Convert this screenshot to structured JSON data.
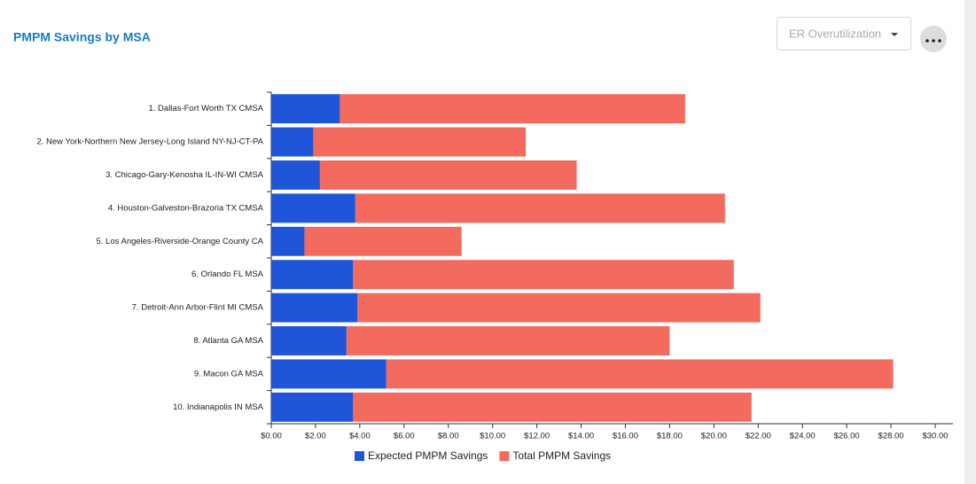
{
  "chart_data": {
    "type": "stacked-bar-horizontal",
    "title": "PMPM Savings by MSA",
    "filter": "ER Overutilization",
    "categories": [
      "1. Dallas-Fort Worth TX CMSA",
      "2. New York-Northern New Jersey-Long Island NY-NJ-CT-PA",
      "3. Chicago-Gary-Kenosha IL-IN-WI CMSA",
      "4. Houston-Galveston-Brazoria TX CMSA",
      "5. Los Angeles-Riverside-Orange County CA",
      "6. Orlando FL MSA",
      "7. Detroit-Ann Arbor-Flint MI CMSA",
      "8. Atlanta GA MSA",
      "9. Macon GA MSA",
      "10. Indianapolis IN MSA"
    ],
    "series": [
      {
        "name": "Expected PMPM Savings",
        "color": "#1f56d9",
        "values": [
          3.1,
          1.9,
          2.2,
          3.8,
          1.5,
          3.7,
          3.9,
          3.4,
          5.2,
          3.7
        ]
      },
      {
        "name": "Total PMPM Savings",
        "color": "#f26b5e",
        "values": [
          15.6,
          9.6,
          11.6,
          16.7,
          7.1,
          17.2,
          18.2,
          14.6,
          22.9,
          18.0
        ]
      }
    ],
    "xlim": [
      0,
      30
    ],
    "xticks": [
      {
        "value": 0,
        "label": "$0.00"
      },
      {
        "value": 2,
        "label": "$2.00"
      },
      {
        "value": 4,
        "label": "$4.00"
      },
      {
        "value": 6,
        "label": "$6.00"
      },
      {
        "value": 8,
        "label": "$8.00"
      },
      {
        "value": 10,
        "label": "$10.00"
      },
      {
        "value": 12,
        "label": "$12.00"
      },
      {
        "value": 14,
        "label": "$14.00"
      },
      {
        "value": 16,
        "label": "$16.00"
      },
      {
        "value": 18,
        "label": "$18.00"
      },
      {
        "value": 20,
        "label": "$20.00"
      },
      {
        "value": 22,
        "label": "$22.00"
      },
      {
        "value": 24,
        "label": "$24.00"
      },
      {
        "value": 26,
        "label": "$26.00"
      },
      {
        "value": 28,
        "label": "$28.00"
      },
      {
        "value": 30,
        "label": "$30.00"
      }
    ]
  }
}
